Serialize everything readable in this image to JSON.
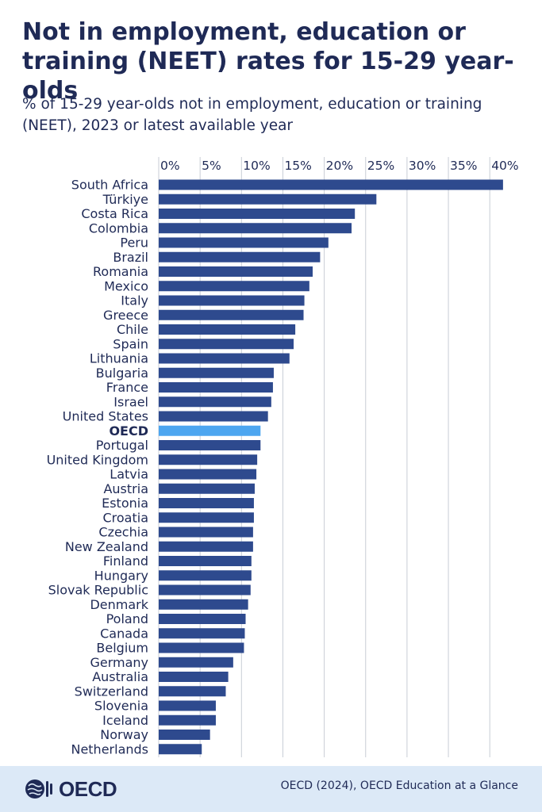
{
  "title": "Not in employment, education or training (NEET) rates for 15-29 year-olds",
  "subtitle": "% of 15-29 year-olds not in employment, education or training (NEET), 2023 or latest available year",
  "footer": {
    "logo_text": "OECD",
    "source": "OECD (2024), OECD Education at a Glance"
  },
  "colors": {
    "bar": "#2e4a8e",
    "highlight": "#4da6f0",
    "grid": "#c8cdd6",
    "text": "#1f2a56"
  },
  "chart_data": {
    "type": "bar",
    "orientation": "horizontal",
    "categories": [
      "South Africa",
      "Türkiye",
      "Costa Rica",
      "Colombia",
      "Peru",
      "Brazil",
      "Romania",
      "Mexico",
      "Italy",
      "Greece",
      "Chile",
      "Spain",
      "Lithuania",
      "Bulgaria",
      "France",
      "Israel",
      "United States",
      "OECD",
      "Portugal",
      "United Kingdom",
      "Latvia",
      "Austria",
      "Estonia",
      "Croatia",
      "Czechia",
      "New Zealand",
      "Finland",
      "Hungary",
      "Slovak Republic",
      "Denmark",
      "Poland",
      "Canada",
      "Belgium",
      "Germany",
      "Australia",
      "Switzerland",
      "Slovenia",
      "Iceland",
      "Norway",
      "Netherlands"
    ],
    "values": [
      41.6,
      26.3,
      23.7,
      23.3,
      20.5,
      19.5,
      18.6,
      18.2,
      17.6,
      17.5,
      16.5,
      16.3,
      15.8,
      13.9,
      13.8,
      13.6,
      13.2,
      12.3,
      12.3,
      11.9,
      11.8,
      11.6,
      11.5,
      11.5,
      11.4,
      11.4,
      11.2,
      11.2,
      11.1,
      10.8,
      10.5,
      10.4,
      10.3,
      9.0,
      8.4,
      8.1,
      6.9,
      6.9,
      6.2,
      5.2
    ],
    "highlight": "OECD",
    "x_ticks": [
      "0%",
      "5%",
      "10%",
      "15%",
      "20%",
      "25%",
      "30%",
      "35%",
      "40%"
    ],
    "xlim": [
      0,
      42
    ],
    "grid": true
  }
}
